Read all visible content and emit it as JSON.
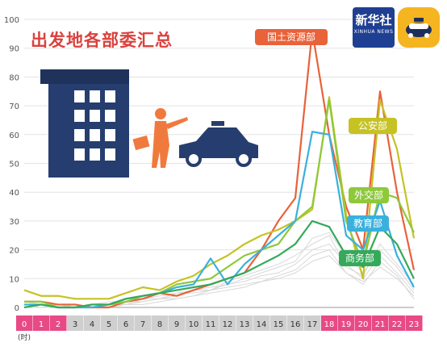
{
  "title": "出发地各部委汇总",
  "logos": [
    {
      "text": "新华社",
      "sub": "XINHUA NEWS",
      "color": "#1f3f93"
    },
    {
      "icon": "taxi-app-icon",
      "color": "#f4b520"
    }
  ],
  "x_unit_label": "(时)",
  "chart_data": {
    "type": "line",
    "x": [
      0,
      1,
      2,
      3,
      4,
      5,
      6,
      7,
      8,
      9,
      10,
      11,
      12,
      13,
      14,
      15,
      16,
      17,
      18,
      19,
      20,
      21,
      22,
      23
    ],
    "ylim": [
      0,
      100
    ],
    "yticks": [
      0,
      10,
      20,
      30,
      40,
      50,
      60,
      70,
      80,
      90,
      100
    ],
    "x_band_colors": {
      "pink": "#e84a86",
      "gray": "#cfcfcf"
    },
    "x_band_pink": [
      0,
      1,
      2,
      18,
      19,
      20,
      21,
      22,
      23
    ],
    "series": [
      {
        "name": "国土资源部",
        "color": "#e8623a",
        "values": [
          2,
          2,
          1,
          1,
          0,
          0,
          2,
          3,
          5,
          4,
          6,
          8,
          10,
          12,
          20,
          30,
          38,
          96,
          60,
          35,
          20,
          75,
          40,
          13
        ]
      },
      {
        "name": "公安部",
        "color": "#c6c224",
        "values": [
          6,
          4,
          4,
          3,
          3,
          3,
          5,
          7,
          6,
          9,
          11,
          15,
          18,
          22,
          25,
          27,
          30,
          34,
          73,
          32,
          10,
          72,
          55,
          24
        ]
      },
      {
        "name": "外交部",
        "color": "#8ec93a",
        "values": [
          2,
          2,
          0,
          0,
          1,
          1,
          2,
          4,
          5,
          8,
          9,
          10,
          14,
          18,
          20,
          22,
          30,
          35,
          72,
          30,
          15,
          40,
          38,
          26
        ]
      },
      {
        "name": "教育部",
        "color": "#3ab0dd",
        "values": [
          1,
          1,
          0,
          0,
          0,
          1,
          3,
          4,
          5,
          7,
          8,
          17,
          8,
          15,
          20,
          25,
          30,
          61,
          60,
          25,
          20,
          37,
          18,
          7
        ]
      },
      {
        "name": "商务部",
        "color": "#35a95a",
        "values": [
          0,
          1,
          0,
          0,
          1,
          1,
          3,
          4,
          5,
          6,
          7,
          8,
          10,
          12,
          15,
          18,
          22,
          30,
          28,
          18,
          14,
          28,
          22,
          10
        ]
      }
    ]
  }
}
